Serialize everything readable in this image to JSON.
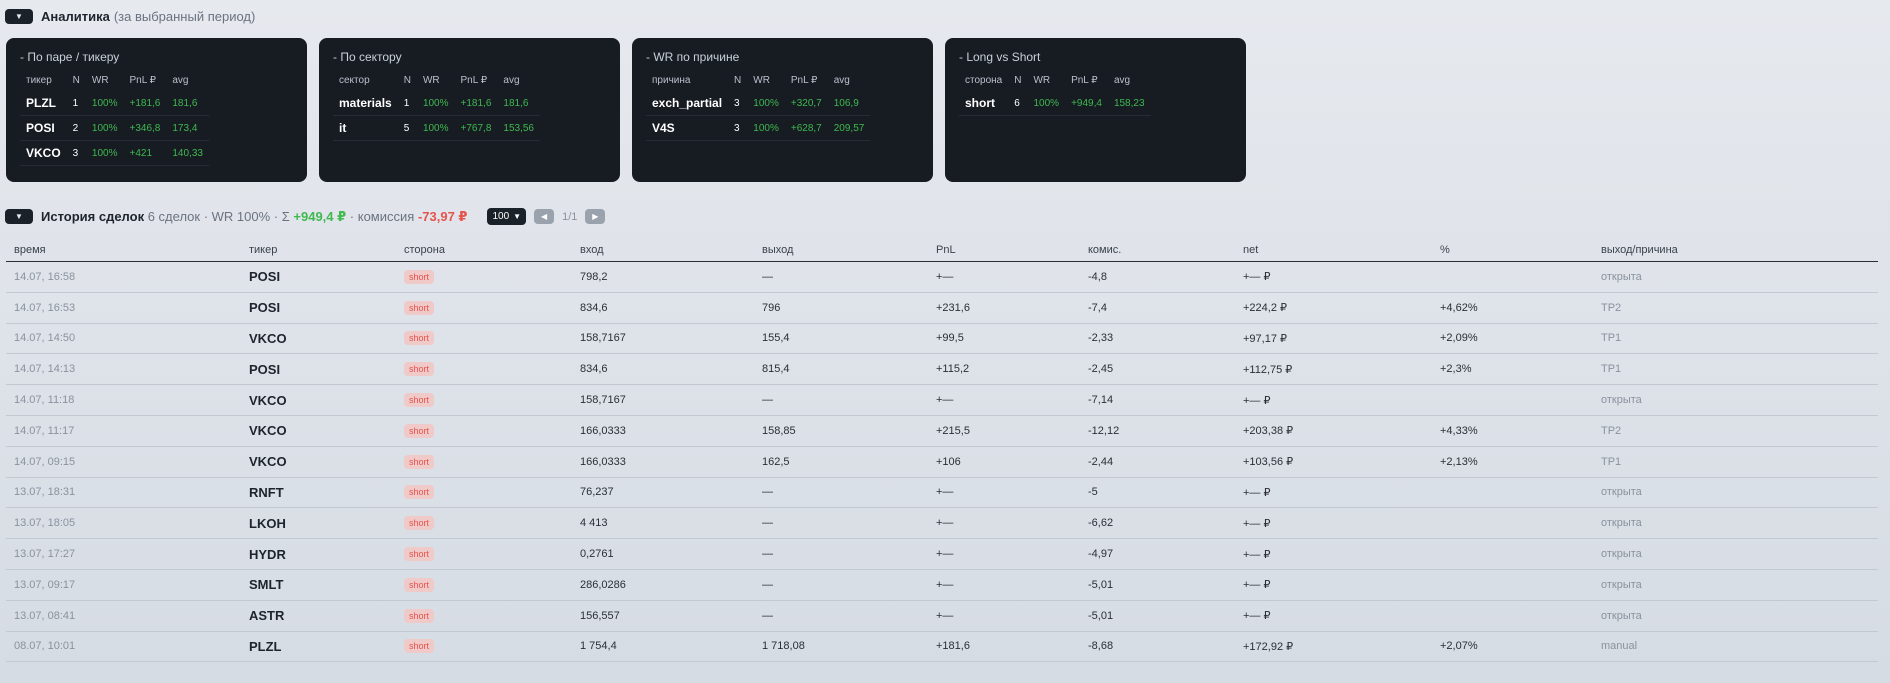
{
  "analytics": {
    "title": "Аналитика",
    "subtitle": "(за выбранный период)",
    "cards": [
      {
        "title": "- По паре / тикеру",
        "headers": [
          "тикер",
          "N",
          "WR",
          "PnL ₽",
          "avg"
        ],
        "rows": [
          [
            "PLZL",
            "1",
            "100%",
            "+181,6",
            "181,6"
          ],
          [
            "POSI",
            "2",
            "100%",
            "+346,8",
            "173,4"
          ],
          [
            "VKCO",
            "3",
            "100%",
            "+421",
            "140,33"
          ]
        ]
      },
      {
        "title": "- По сектору",
        "headers": [
          "сектор",
          "N",
          "WR",
          "PnL ₽",
          "avg"
        ],
        "rows": [
          [
            "materials",
            "1",
            "100%",
            "+181,6",
            "181,6"
          ],
          [
            "it",
            "5",
            "100%",
            "+767,8",
            "153,56"
          ]
        ]
      },
      {
        "title": "- WR по причине",
        "headers": [
          "причина",
          "N",
          "WR",
          "PnL ₽",
          "avg"
        ],
        "rows": [
          [
            "exch_partial",
            "3",
            "100%",
            "+320,7",
            "106,9"
          ],
          [
            "V4S",
            "3",
            "100%",
            "+628,7",
            "209,57"
          ]
        ]
      },
      {
        "title": "- Long vs Short",
        "headers": [
          "сторона",
          "N",
          "WR",
          "PnL ₽",
          "avg"
        ],
        "rows": [
          [
            "short",
            "6",
            "100%",
            "+949,4",
            "158,23"
          ]
        ]
      }
    ]
  },
  "history": {
    "title": "История сделок",
    "count_text": "6 сделок · WR 100% · Σ",
    "sum": "+949,4 ₽",
    "commission_label": "· комиссия",
    "commission": "-73,97 ₽",
    "page_size": "100",
    "page_info": "1/1",
    "columns": [
      "время",
      "тикер",
      "сторона",
      "вход",
      "выход",
      "PnL",
      "комис.",
      "net",
      "%",
      "выход/причина"
    ],
    "rows": [
      {
        "time": "14.07, 16:58",
        "ticker": "POSI",
        "side": "short",
        "entry": "798,2",
        "exit": "—",
        "pnl": "+—",
        "fee": "-4,8",
        "net": "+— ₽",
        "pct": "",
        "reason": "открыта"
      },
      {
        "time": "14.07, 16:53",
        "ticker": "POSI",
        "side": "short",
        "entry": "834,6",
        "exit": "796",
        "pnl": "+231,6",
        "fee": "-7,4",
        "net": "+224,2 ₽",
        "pct": "+4,62%",
        "reason": "TP2"
      },
      {
        "time": "14.07, 14:50",
        "ticker": "VKCO",
        "side": "short",
        "entry": "158,7167",
        "exit": "155,4",
        "pnl": "+99,5",
        "fee": "-2,33",
        "net": "+97,17 ₽",
        "pct": "+2,09%",
        "reason": "TP1"
      },
      {
        "time": "14.07, 14:13",
        "ticker": "POSI",
        "side": "short",
        "entry": "834,6",
        "exit": "815,4",
        "pnl": "+115,2",
        "fee": "-2,45",
        "net": "+112,75 ₽",
        "pct": "+2,3%",
        "reason": "TP1"
      },
      {
        "time": "14.07, 11:18",
        "ticker": "VKCO",
        "side": "short",
        "entry": "158,7167",
        "exit": "—",
        "pnl": "+—",
        "fee": "-7,14",
        "net": "+— ₽",
        "pct": "",
        "reason": "открыта"
      },
      {
        "time": "14.07, 11:17",
        "ticker": "VKCO",
        "side": "short",
        "entry": "166,0333",
        "exit": "158,85",
        "pnl": "+215,5",
        "fee": "-12,12",
        "net": "+203,38 ₽",
        "pct": "+4,33%",
        "reason": "TP2"
      },
      {
        "time": "14.07, 09:15",
        "ticker": "VKCO",
        "side": "short",
        "entry": "166,0333",
        "exit": "162,5",
        "pnl": "+106",
        "fee": "-2,44",
        "net": "+103,56 ₽",
        "pct": "+2,13%",
        "reason": "TP1"
      },
      {
        "time": "13.07, 18:31",
        "ticker": "RNFT",
        "side": "short",
        "entry": "76,237",
        "exit": "—",
        "pnl": "+—",
        "fee": "-5",
        "net": "+— ₽",
        "pct": "",
        "reason": "открыта"
      },
      {
        "time": "13.07, 18:05",
        "ticker": "LKOH",
        "side": "short",
        "entry": "4 413",
        "exit": "—",
        "pnl": "+—",
        "fee": "-6,62",
        "net": "+— ₽",
        "pct": "",
        "reason": "открыта"
      },
      {
        "time": "13.07, 17:27",
        "ticker": "HYDR",
        "side": "short",
        "entry": "0,2761",
        "exit": "—",
        "pnl": "+—",
        "fee": "-4,97",
        "net": "+— ₽",
        "pct": "",
        "reason": "открыта"
      },
      {
        "time": "13.07, 09:17",
        "ticker": "SMLT",
        "side": "short",
        "entry": "286,0286",
        "exit": "—",
        "pnl": "+—",
        "fee": "-5,01",
        "net": "+— ₽",
        "pct": "",
        "reason": "открыта"
      },
      {
        "time": "13.07, 08:41",
        "ticker": "ASTR",
        "side": "short",
        "entry": "156,557",
        "exit": "—",
        "pnl": "+—",
        "fee": "-5,01",
        "net": "+— ₽",
        "pct": "",
        "reason": "открыта"
      },
      {
        "time": "08.07, 10:01",
        "ticker": "PLZL",
        "side": "short",
        "entry": "1 754,4",
        "exit": "1 718,08",
        "pnl": "+181,6",
        "fee": "-8,68",
        "net": "+172,92 ₽",
        "pct": "+2,07%",
        "reason": "manual"
      }
    ]
  },
  "colors": {
    "positive": "#3fb950",
    "negative": "#e5534b",
    "card_bg": "#171b22"
  },
  "icons": {
    "toggle": "chevron-down-icon",
    "prev": "chevron-left-icon",
    "next": "chevron-right-icon"
  }
}
